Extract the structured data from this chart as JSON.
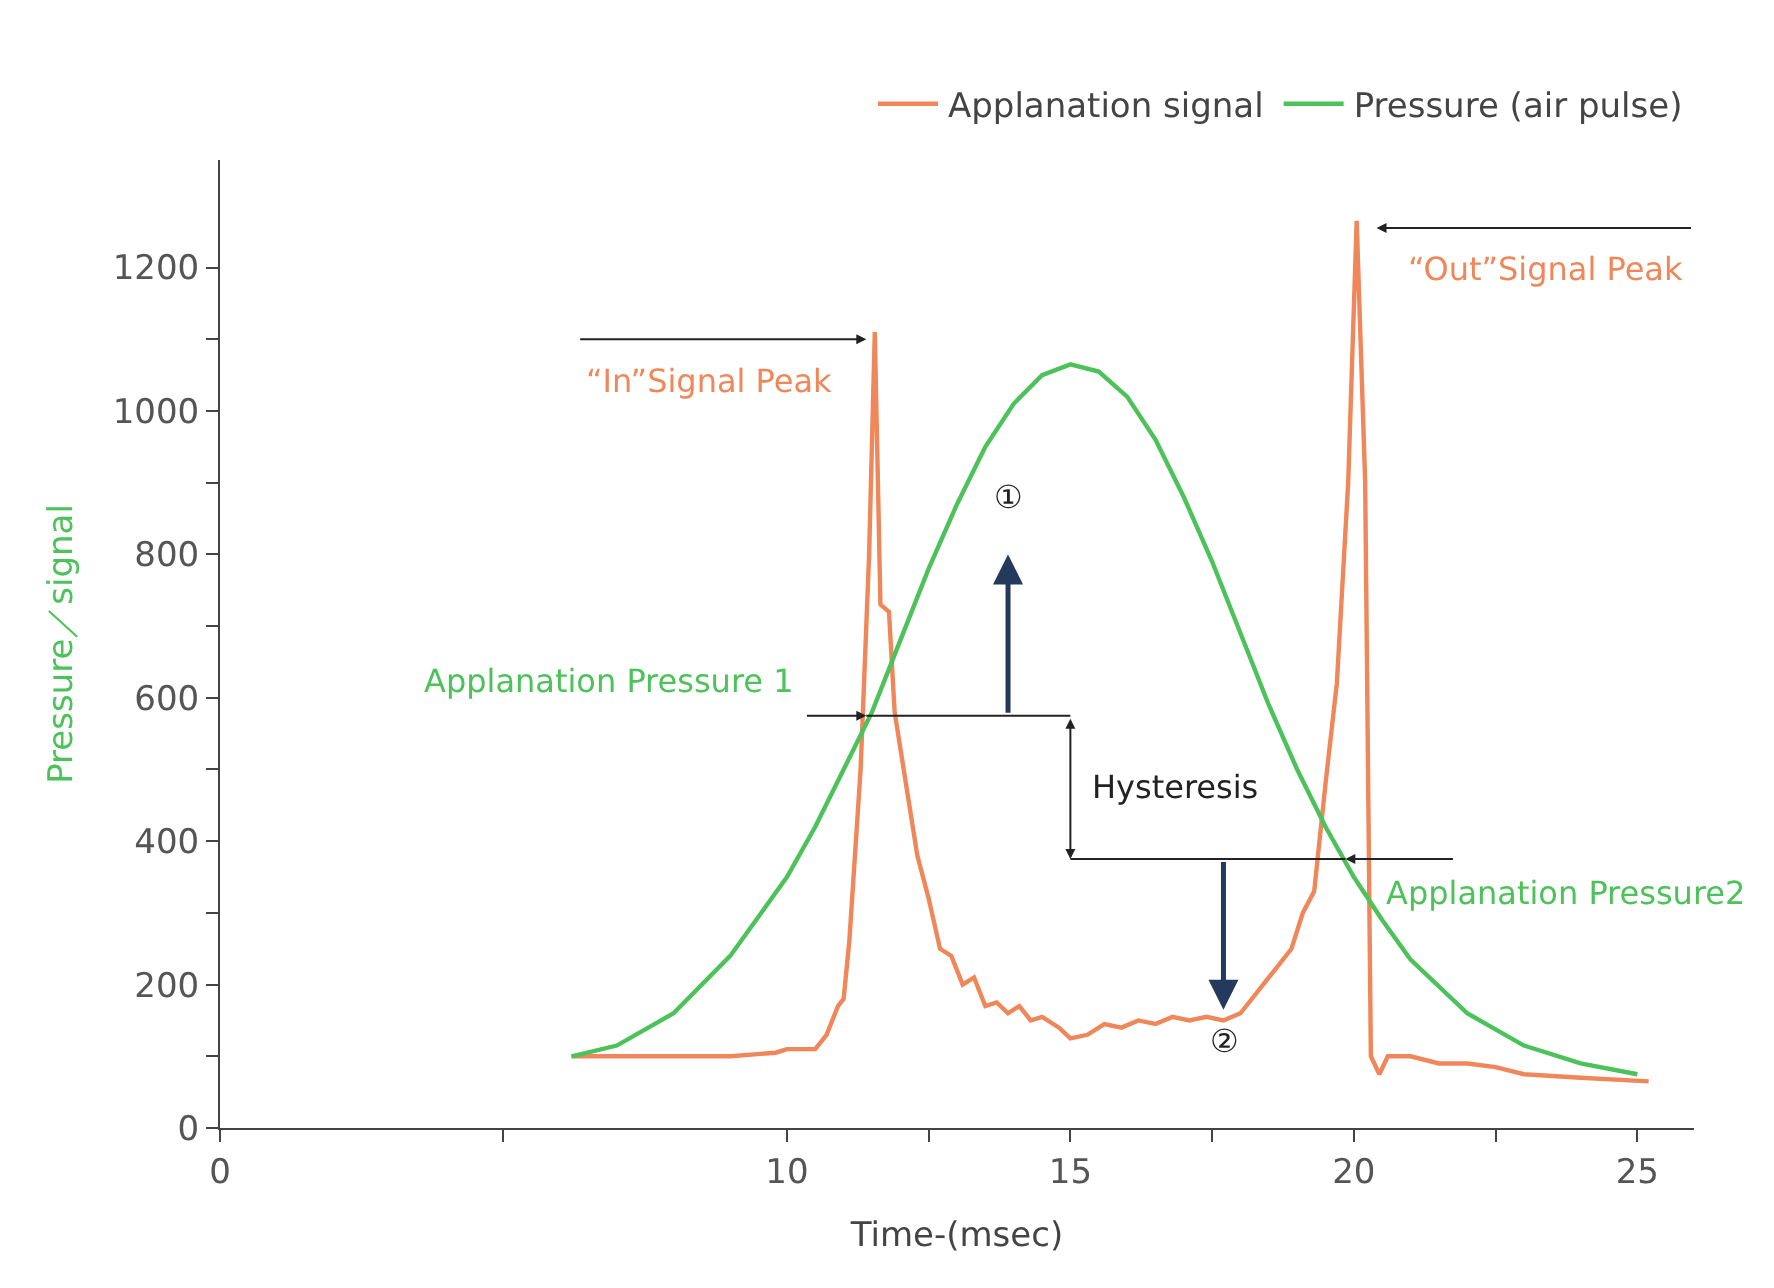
{
  "chart_data": {
    "type": "line",
    "xlabel": "Time-(msec)",
    "ylabel": "Pressure／signal",
    "series": [
      {
        "name": "Applanation signal",
        "color": "#f0875a",
        "x": [
          6.2,
          9,
          9.8,
          10,
          10.5,
          10.7,
          10.9,
          11,
          11.1,
          11.3,
          11.45,
          11.55,
          11.65,
          11.8,
          11.9,
          12.1,
          12.3,
          12.5,
          12.7,
          12.9,
          13.1,
          13.3,
          13.5,
          13.7,
          13.9,
          14.1,
          14.3,
          14.5,
          14.8,
          15,
          15.3,
          15.6,
          15.9,
          16.2,
          16.5,
          16.8,
          17.1,
          17.4,
          17.7,
          18,
          18.3,
          18.6,
          18.9,
          19.1,
          19.3,
          19.5,
          19.7,
          19.9,
          20.05,
          20.2,
          20.3,
          20.45,
          20.6,
          21,
          21.5,
          22,
          22.5,
          23,
          24,
          25.2
        ],
        "values": [
          100,
          100,
          105,
          110,
          110,
          130,
          170,
          180,
          260,
          500,
          800,
          1110,
          730,
          720,
          580,
          480,
          380,
          320,
          250,
          240,
          200,
          210,
          170,
          175,
          160,
          170,
          150,
          155,
          140,
          125,
          130,
          145,
          140,
          150,
          145,
          155,
          150,
          155,
          150,
          160,
          190,
          220,
          250,
          300,
          330,
          480,
          620,
          900,
          1265,
          900,
          100,
          75,
          100,
          100,
          90,
          90,
          85,
          75,
          70,
          65
        ]
      },
      {
        "name": "Pressure (air pulse)",
        "color": "#4dc25a",
        "x": [
          6.2,
          7,
          8,
          9,
          10,
          10.5,
          11,
          11.5,
          12,
          12.5,
          13,
          13.5,
          14,
          14.5,
          15,
          15.5,
          16,
          16.5,
          17,
          17.5,
          18,
          18.5,
          19,
          19.5,
          20,
          20.5,
          21,
          22,
          23,
          24,
          25
        ],
        "values": [
          100,
          115,
          160,
          240,
          350,
          420,
          500,
          580,
          680,
          780,
          870,
          950,
          1010,
          1050,
          1065,
          1055,
          1020,
          960,
          880,
          790,
          690,
          590,
          500,
          420,
          350,
          290,
          235,
          160,
          115,
          90,
          75
        ]
      }
    ],
    "xlim": [
      0,
      26
    ],
    "xticks": [
      0,
      {
        "value": 5,
        "label": null
      },
      10,
      {
        "value": 12.5,
        "label": null
      },
      15,
      {
        "value": 17.5,
        "label": null
      },
      20,
      {
        "value": 22.5,
        "label": null
      },
      25
    ],
    "ylim": [
      0,
      1350
    ],
    "yticks": [
      0,
      {
        "value": 100,
        "label": null
      },
      200,
      {
        "value": 300,
        "label": null
      },
      400,
      {
        "value": 500,
        "label": null
      },
      600,
      {
        "value": 700,
        "label": null
      },
      800,
      {
        "value": 900,
        "label": null
      },
      1000,
      {
        "value": 1100,
        "label": null
      },
      1200
    ],
    "annotations": [
      "“In”Signal Peak",
      "“Out”Signal Peak",
      {
        "text": "Applanation Pressure 1",
        "x": 11.4,
        "y": 575
      },
      "Applanation Pressure2",
      "Hysteresis",
      "①",
      "②"
    ],
    "grid": false,
    "legend": "top right",
    "marker": "none",
    "line_style": "solid"
  }
}
